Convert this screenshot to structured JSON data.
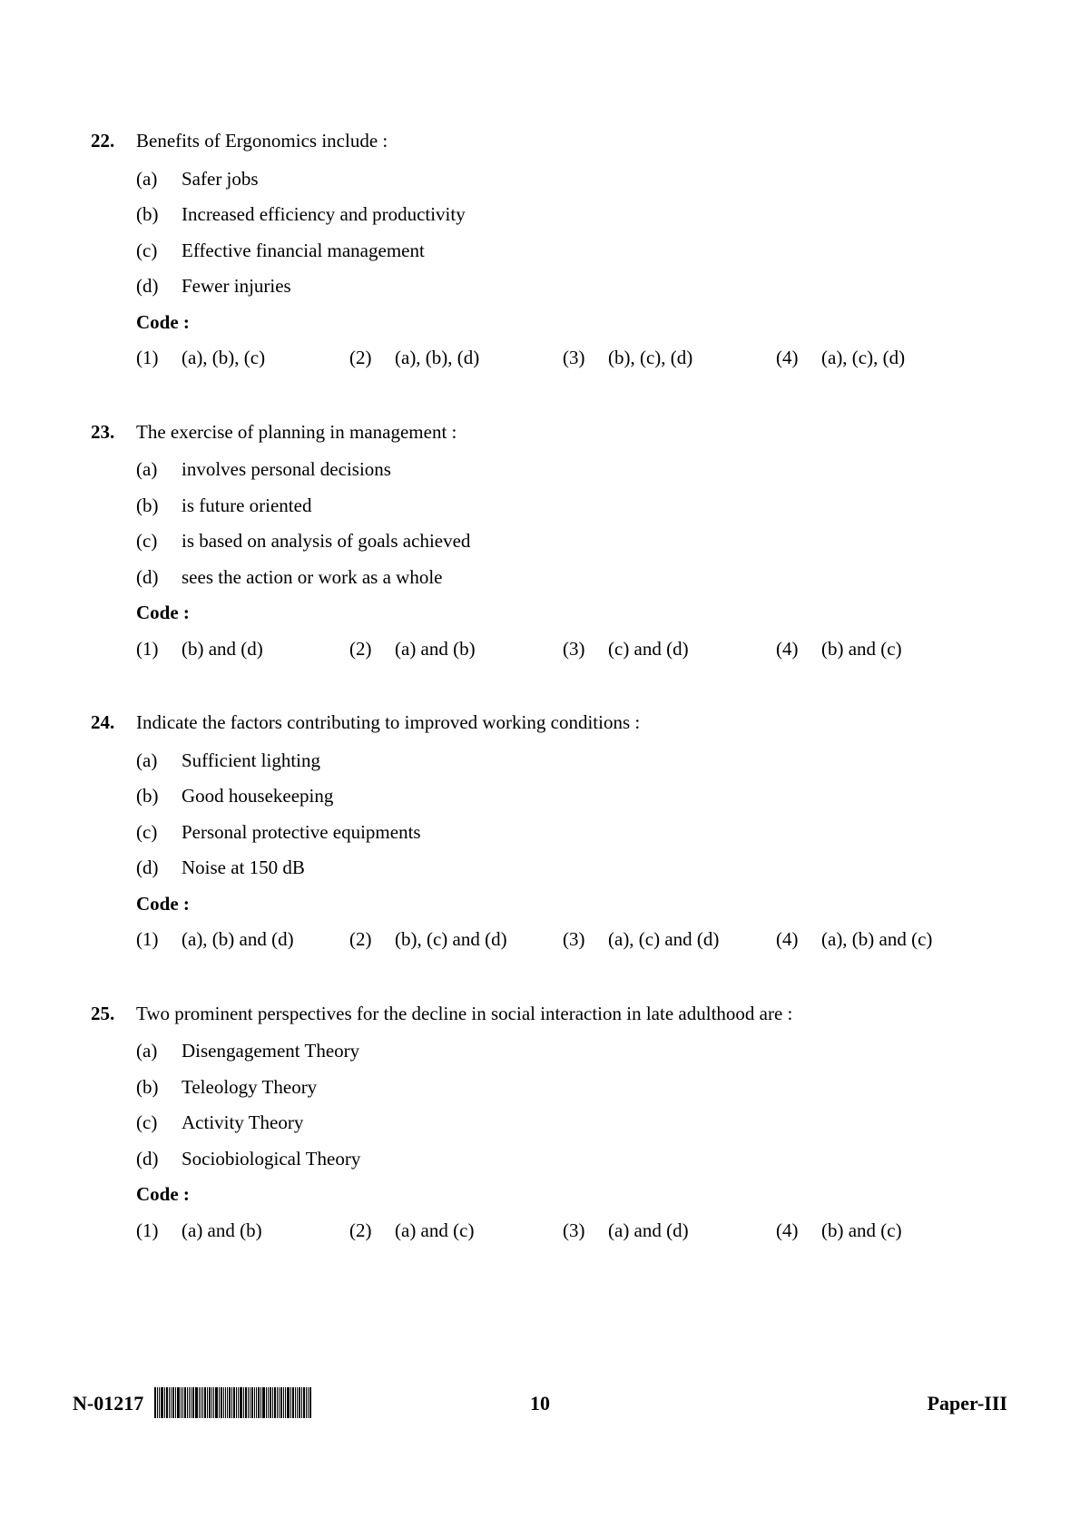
{
  "page": {
    "background": "#ffffff",
    "text_color": "#000000",
    "font_family": "Book Antiqua / Palatino serif",
    "base_font_size_pt": 16
  },
  "questions": [
    {
      "number": "22.",
      "stem": "Benefits of Ergonomics include :",
      "options": [
        {
          "label": "(a)",
          "text": "Safer jobs"
        },
        {
          "label": "(b)",
          "text": "Increased efficiency and productivity"
        },
        {
          "label": "(c)",
          "text": "Effective financial management"
        },
        {
          "label": "(d)",
          "text": "Fewer injuries"
        }
      ],
      "code_label": "Code :",
      "answers": [
        {
          "num": "(1)",
          "text": "(a), (b), (c)"
        },
        {
          "num": "(2)",
          "text": "(a), (b), (d)"
        },
        {
          "num": "(3)",
          "text": "(b), (c), (d)"
        },
        {
          "num": "(4)",
          "text": "(a), (c), (d)"
        }
      ]
    },
    {
      "number": "23.",
      "stem": "The exercise of planning in management :",
      "options": [
        {
          "label": "(a)",
          "text": "involves personal decisions"
        },
        {
          "label": "(b)",
          "text": "is future oriented"
        },
        {
          "label": "(c)",
          "text": "is based on analysis of goals achieved"
        },
        {
          "label": "(d)",
          "text": "sees the action or work as a whole"
        }
      ],
      "code_label": "Code :",
      "answers": [
        {
          "num": "(1)",
          "text": "(b) and (d)"
        },
        {
          "num": "(2)",
          "text": "(a) and (b)"
        },
        {
          "num": "(3)",
          "text": "(c) and (d)"
        },
        {
          "num": "(4)",
          "text": "(b) and (c)"
        }
      ]
    },
    {
      "number": "24.",
      "stem": "Indicate the factors contributing to improved working conditions :",
      "options": [
        {
          "label": "(a)",
          "text": "Sufficient lighting"
        },
        {
          "label": "(b)",
          "text": "Good housekeeping"
        },
        {
          "label": "(c)",
          "text": "Personal protective equipments"
        },
        {
          "label": "(d)",
          "text": "Noise at 150 dB"
        }
      ],
      "code_label": "Code :",
      "answers": [
        {
          "num": "(1)",
          "text": "(a), (b) and (d)"
        },
        {
          "num": "(2)",
          "text": "(b), (c) and (d)"
        },
        {
          "num": "(3)",
          "text": "(a), (c) and (d)"
        },
        {
          "num": "(4)",
          "text": "(a), (b) and (c)"
        }
      ]
    },
    {
      "number": "25.",
      "stem": "Two prominent perspectives for the decline in social interaction in late adulthood are :",
      "options": [
        {
          "label": "(a)",
          "text": "Disengagement Theory"
        },
        {
          "label": "(b)",
          "text": "Teleology Theory"
        },
        {
          "label": "(c)",
          "text": "Activity Theory"
        },
        {
          "label": "(d)",
          "text": "Sociobiological Theory"
        }
      ],
      "code_label": "Code :",
      "answers": [
        {
          "num": "(1)",
          "text": "(a) and (b)"
        },
        {
          "num": "(2)",
          "text": "(a) and (c)"
        },
        {
          "num": "(3)",
          "text": "(a) and (d)"
        },
        {
          "num": "(4)",
          "text": "(b) and (c)"
        }
      ]
    }
  ],
  "footer": {
    "code": "N-01217",
    "page_number": "10",
    "paper": "Paper-III"
  },
  "barcode": {
    "bars": [
      2,
      1,
      1,
      3,
      1,
      2,
      1,
      1,
      2,
      1,
      3,
      1,
      1,
      2,
      1,
      1,
      1,
      2,
      3,
      1,
      1,
      1,
      2,
      1,
      2,
      1,
      1,
      3,
      1,
      2,
      1,
      1,
      1,
      2,
      1,
      2,
      1,
      1,
      3,
      1,
      2,
      1,
      1,
      2,
      1,
      1,
      2,
      1,
      3,
      1,
      1,
      2,
      1,
      2,
      1,
      1,
      2,
      1,
      1,
      3,
      1,
      2,
      1,
      1,
      2,
      1,
      2,
      1,
      1,
      2
    ],
    "gap": 1,
    "color": "#000000"
  }
}
